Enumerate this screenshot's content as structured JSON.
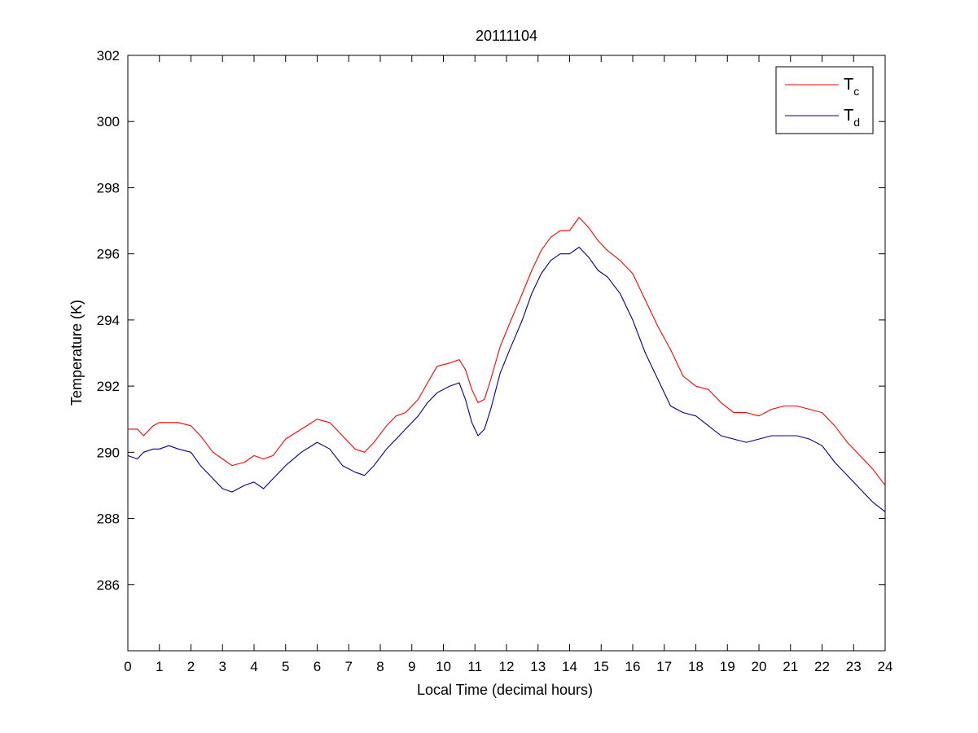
{
  "chart_data": {
    "type": "line",
    "title": "20111104",
    "xlabel": "Local Time (decimal hours)",
    "ylabel": "Temperature (K)",
    "xlim": [
      0,
      24
    ],
    "ylim": [
      284,
      302
    ],
    "xticks": [
      "0",
      "1",
      "2",
      "3",
      "4",
      "5",
      "6",
      "7",
      "8",
      "9",
      "10",
      "11",
      "12",
      "13",
      "14",
      "15",
      "16",
      "17",
      "18",
      "19",
      "20",
      "21",
      "22",
      "23",
      "24"
    ],
    "yticks": [
      "286",
      "288",
      "290",
      "292",
      "294",
      "296",
      "298",
      "300",
      "302"
    ],
    "grid": false,
    "legend_position": "top-right",
    "series": [
      {
        "name": "T",
        "subscript": "c",
        "color": "#ff0000",
        "x": [
          0,
          0.3,
          0.5,
          0.8,
          1.0,
          1.3,
          1.6,
          2.0,
          2.3,
          2.7,
          3.0,
          3.3,
          3.7,
          4.0,
          4.3,
          4.6,
          5.0,
          5.5,
          6.0,
          6.4,
          6.8,
          7.2,
          7.5,
          7.8,
          8.2,
          8.5,
          8.8,
          9.2,
          9.5,
          9.8,
          10.2,
          10.5,
          10.7,
          10.9,
          11.1,
          11.3,
          11.5,
          11.8,
          12.1,
          12.5,
          12.8,
          13.1,
          13.4,
          13.7,
          14.0,
          14.3,
          14.6,
          14.9,
          15.2,
          15.6,
          16.0,
          16.4,
          16.8,
          17.2,
          17.6,
          18.0,
          18.4,
          18.8,
          19.2,
          19.6,
          20.0,
          20.4,
          20.8,
          21.2,
          21.6,
          22.0,
          22.4,
          22.8,
          23.2,
          23.6,
          24.0
        ],
        "y": [
          290.7,
          290.7,
          290.5,
          290.8,
          290.9,
          290.9,
          290.9,
          290.8,
          290.5,
          290.0,
          289.8,
          289.6,
          289.7,
          289.9,
          289.8,
          289.9,
          290.4,
          290.7,
          291.0,
          290.9,
          290.5,
          290.1,
          290.0,
          290.3,
          290.8,
          291.1,
          291.2,
          291.6,
          292.1,
          292.6,
          292.7,
          292.8,
          292.5,
          291.9,
          291.5,
          291.6,
          292.2,
          293.2,
          293.9,
          294.8,
          295.5,
          296.1,
          296.5,
          296.7,
          296.7,
          297.1,
          296.8,
          296.4,
          296.1,
          295.8,
          295.4,
          294.6,
          293.8,
          293.1,
          292.3,
          292.0,
          291.9,
          291.5,
          291.2,
          291.2,
          291.1,
          291.3,
          291.4,
          291.4,
          291.3,
          291.2,
          290.8,
          290.3,
          289.9,
          289.5,
          289.0
        ]
      },
      {
        "name": "T",
        "subscript": "d",
        "color": "#00008b",
        "x": [
          0,
          0.3,
          0.5,
          0.8,
          1.0,
          1.3,
          1.6,
          2.0,
          2.3,
          2.7,
          3.0,
          3.3,
          3.7,
          4.0,
          4.3,
          4.6,
          5.0,
          5.5,
          6.0,
          6.4,
          6.8,
          7.2,
          7.5,
          7.8,
          8.2,
          8.5,
          8.8,
          9.2,
          9.5,
          9.8,
          10.2,
          10.5,
          10.7,
          10.9,
          11.1,
          11.3,
          11.5,
          11.8,
          12.1,
          12.5,
          12.8,
          13.1,
          13.4,
          13.7,
          14.0,
          14.3,
          14.6,
          14.9,
          15.2,
          15.6,
          16.0,
          16.4,
          16.8,
          17.2,
          17.6,
          18.0,
          18.4,
          18.8,
          19.2,
          19.6,
          20.0,
          20.4,
          20.8,
          21.2,
          21.6,
          22.0,
          22.4,
          22.8,
          23.2,
          23.6,
          24.0
        ],
        "y": [
          289.9,
          289.8,
          290.0,
          290.1,
          290.1,
          290.2,
          290.1,
          290.0,
          289.6,
          289.2,
          288.9,
          288.8,
          289.0,
          289.1,
          288.9,
          289.2,
          289.6,
          290.0,
          290.3,
          290.1,
          289.6,
          289.4,
          289.3,
          289.6,
          290.1,
          290.4,
          290.7,
          291.1,
          291.5,
          291.8,
          292.0,
          292.1,
          291.6,
          290.9,
          290.5,
          290.7,
          291.3,
          292.4,
          293.1,
          294.0,
          294.8,
          295.4,
          295.8,
          296.0,
          296.0,
          296.2,
          295.9,
          295.5,
          295.3,
          294.8,
          294.0,
          293.0,
          292.2,
          291.4,
          291.2,
          291.1,
          290.8,
          290.5,
          290.4,
          290.3,
          290.4,
          290.5,
          290.5,
          290.5,
          290.4,
          290.2,
          289.7,
          289.3,
          288.9,
          288.5,
          288.2
        ]
      }
    ]
  }
}
